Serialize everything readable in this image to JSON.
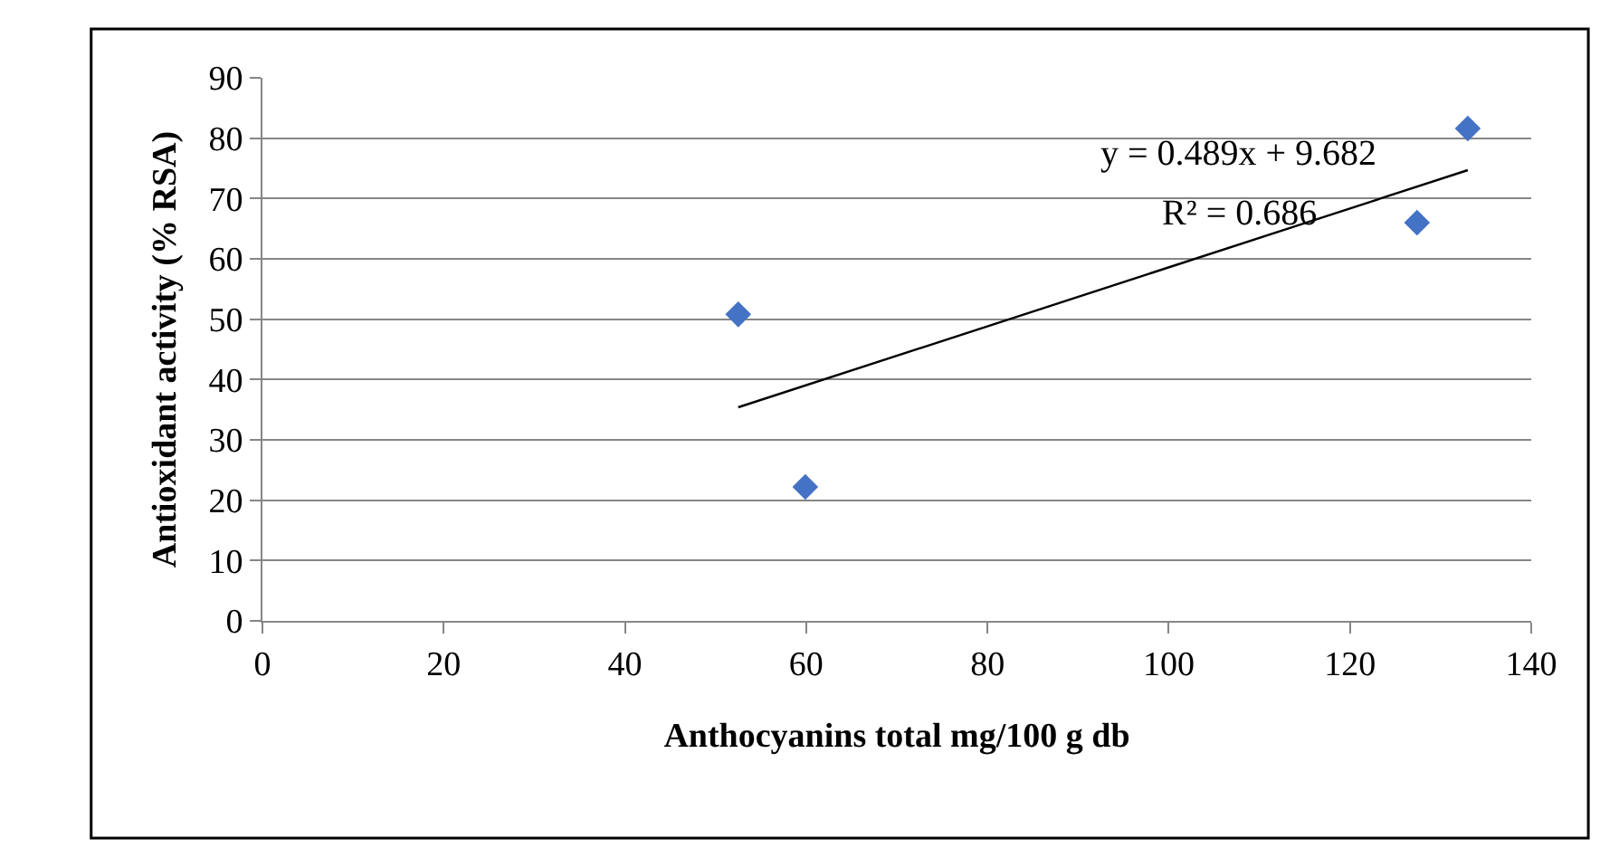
{
  "chart_data": {
    "type": "scatter",
    "xlabel": "Anthocyanins total mg/100 g db",
    "ylabel": "Antioxidant activity (% RSA)",
    "series": [
      {
        "color": "#4472c4",
        "x": [
          52.5,
          59.9,
          127.4,
          133.0
        ],
        "values": [
          50.8,
          22.2,
          66.0,
          81.6
        ],
        "marker": "diamond"
      },
      {
        "type": "line",
        "color": "#000000",
        "x": [
          52.5,
          133.0
        ],
        "values": [
          35.4,
          74.7
        ],
        "marker": "none",
        "line_style": "solid"
      }
    ],
    "annotations": [
      "y = 0.489x + 9.682",
      "R² = 0.686"
    ],
    "xlim": [
      0,
      140
    ],
    "xticks": [
      0,
      20,
      40,
      60,
      80,
      100,
      120,
      140
    ],
    "ylim": [
      0,
      90
    ],
    "yticks": [
      0,
      10,
      20,
      30,
      40,
      50,
      60,
      70,
      80,
      90
    ],
    "grid": "y"
  }
}
